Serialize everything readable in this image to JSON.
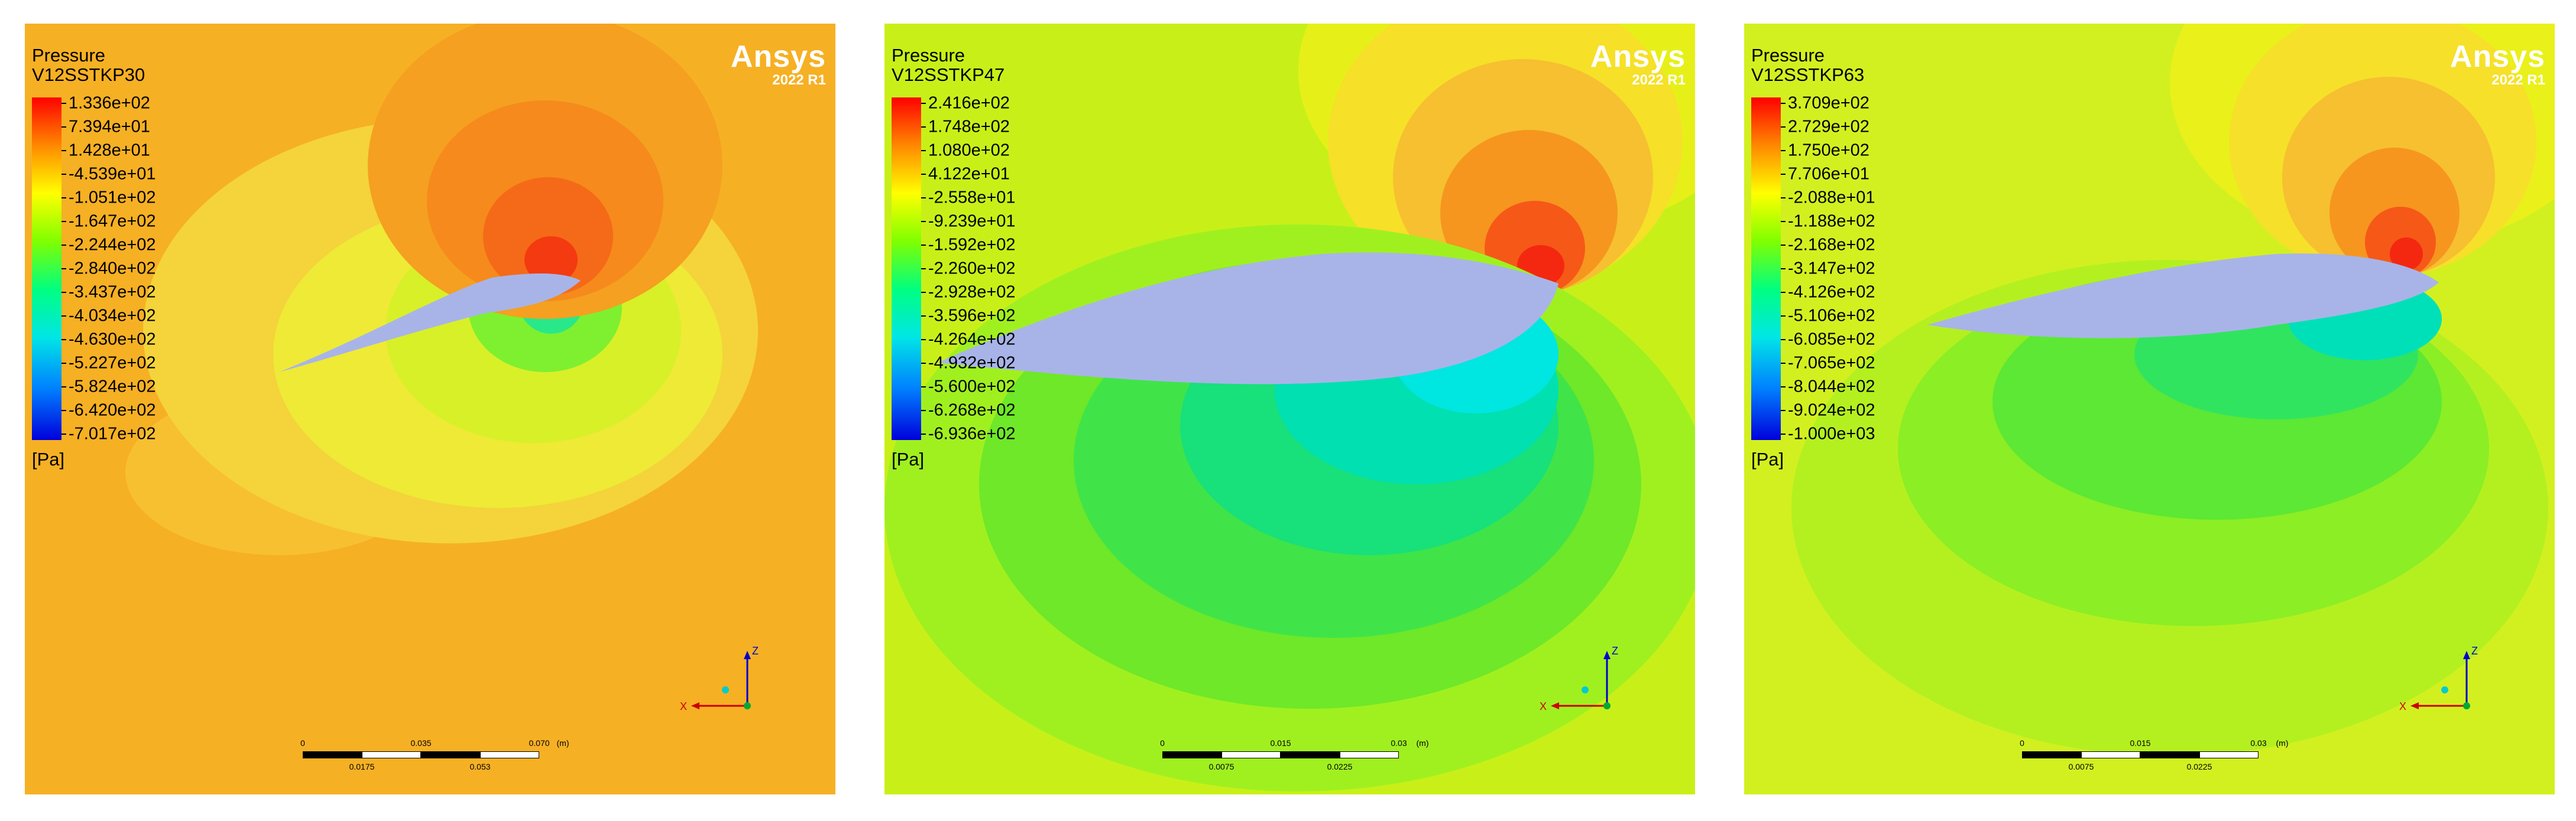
{
  "panels": [
    {
      "title": "Pressure",
      "case": "V12SSTKP30",
      "unit": "[Pa]",
      "legend": [
        "1.336e+02",
        "7.394e+01",
        "1.428e+01",
        "-4.539e+01",
        "-1.051e+02",
        "-1.647e+02",
        "-2.244e+02",
        "-2.840e+02",
        "-3.437e+02",
        "-4.034e+02",
        "-4.630e+02",
        "-5.227e+02",
        "-5.824e+02",
        "-6.420e+02",
        "-7.017e+02"
      ],
      "brand": "Ansys",
      "version": "2022 R1",
      "axes": {
        "x": "X",
        "z": "Z"
      },
      "scale_top": [
        "0",
        "0.035",
        "0.070",
        "(m)"
      ],
      "scale_bottom": [
        "0.0175",
        "0.053"
      ],
      "background_color": "#f6b024"
    },
    {
      "title": "Pressure",
      "case": "V12SSTKP47",
      "unit": "[Pa]",
      "legend": [
        "2.416e+02",
        "1.748e+02",
        "1.080e+02",
        "4.122e+01",
        "-2.558e+01",
        "-9.239e+01",
        "-1.592e+02",
        "-2.260e+02",
        "-2.928e+02",
        "-3.596e+02",
        "-4.264e+02",
        "-4.932e+02",
        "-5.600e+02",
        "-6.268e+02",
        "-6.936e+02"
      ],
      "brand": "Ansys",
      "version": "2022 R1",
      "axes": {
        "x": "X",
        "z": "Z"
      },
      "scale_top": [
        "0",
        "0.015",
        "0.03",
        "(m)"
      ],
      "scale_bottom": [
        "0.0075",
        "0.0225"
      ],
      "background_color": "#c8f018"
    },
    {
      "title": "Pressure",
      "case": "V12SSTKP63",
      "unit": "[Pa]",
      "legend": [
        "3.709e+02",
        "2.729e+02",
        "1.750e+02",
        "7.706e+01",
        "-2.088e+01",
        "-1.188e+02",
        "-2.168e+02",
        "-3.147e+02",
        "-4.126e+02",
        "-5.106e+02",
        "-6.085e+02",
        "-7.065e+02",
        "-8.044e+02",
        "-9.024e+02",
        "-1.000e+03"
      ],
      "brand": "Ansys",
      "version": "2022 R1",
      "axes": {
        "x": "X",
        "z": "Z"
      },
      "scale_top": [
        "0",
        "0.015",
        "0.03",
        "(m)"
      ],
      "scale_bottom": [
        "0.0075",
        "0.0225"
      ],
      "background_color": "#d2f020"
    }
  ],
  "colors": {
    "airfoil": "#a8b4e8",
    "colorbar": [
      "#ff0000",
      "#ff5a00",
      "#ff9600",
      "#ffc800",
      "#f0f000",
      "#b4f000",
      "#64f000",
      "#28e628",
      "#00e678",
      "#00e6c8",
      "#00c8f0",
      "#0096f0",
      "#0064f0",
      "#0032e6",
      "#0000dc"
    ]
  }
}
